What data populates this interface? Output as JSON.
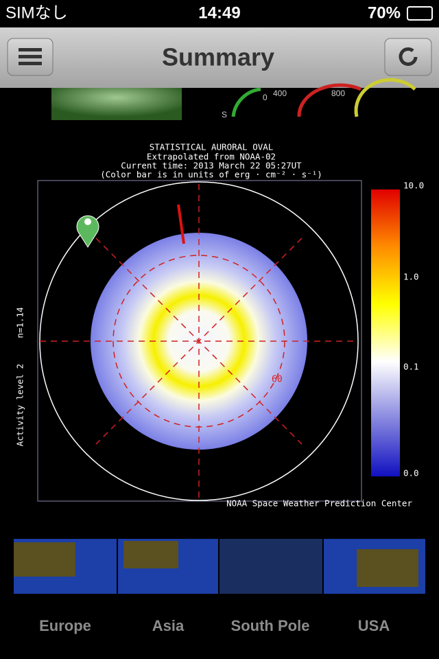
{
  "status_bar": {
    "carrier": "SIMなし",
    "time": "14:49",
    "battery": "70%"
  },
  "nav_bar": {
    "title": "Summary"
  },
  "top_gauges": {
    "labels": [
      "S",
      "0",
      "400",
      "800"
    ]
  },
  "aurora_map": {
    "title_lines": [
      "STATISTICAL AURORAL OVAL",
      "Extrapolated from NOAA-02",
      "Current time: 2013 March 22 05:27UT",
      "(Color bar is in units of erg · cm⁻² · s⁻¹)"
    ],
    "side_labels": [
      "n=1.14",
      "Activity level 2"
    ],
    "latitude_label": "60",
    "colorbar_labels": [
      "10.0",
      "1.0",
      "0.1",
      "0.0"
    ],
    "credit": "NOAA Space Weather Prediction Center"
  },
  "tabs": [
    "Europe",
    "Asia",
    "South Pole",
    "USA"
  ]
}
